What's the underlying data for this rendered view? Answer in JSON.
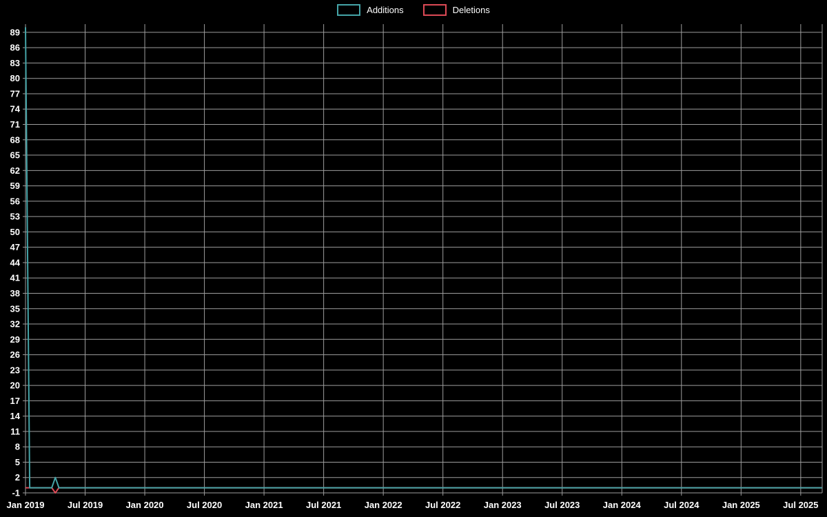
{
  "chart_data": {
    "type": "line",
    "title": "",
    "xlabel": "",
    "ylabel": "",
    "grid": true,
    "legend_position": "top-center",
    "background_color": "#000000",
    "grid_color": "#9e9e9e",
    "text_color": "#ffffff",
    "xlim": [
      2019.0,
      2025.68
    ],
    "ylim": [
      -1,
      90.6
    ],
    "y_ticks": [
      -1,
      2,
      5,
      8,
      11,
      14,
      17,
      20,
      23,
      26,
      29,
      32,
      35,
      38,
      41,
      44,
      47,
      50,
      53,
      56,
      59,
      62,
      65,
      68,
      71,
      74,
      77,
      80,
      83,
      86,
      89
    ],
    "x_ticks": [
      {
        "v": 2019.0,
        "label": "Jan 2019"
      },
      {
        "v": 2019.5,
        "label": "Jul 2019"
      },
      {
        "v": 2020.0,
        "label": "Jan 2020"
      },
      {
        "v": 2020.5,
        "label": "Jul 2020"
      },
      {
        "v": 2021.0,
        "label": "Jan 2021"
      },
      {
        "v": 2021.5,
        "label": "Jul 2021"
      },
      {
        "v": 2022.0,
        "label": "Jan 2022"
      },
      {
        "v": 2022.5,
        "label": "Jul 2022"
      },
      {
        "v": 2023.0,
        "label": "Jan 2023"
      },
      {
        "v": 2023.5,
        "label": "Jul 2023"
      },
      {
        "v": 2024.0,
        "label": "Jan 2024"
      },
      {
        "v": 2024.5,
        "label": "Jul 2024"
      },
      {
        "v": 2025.0,
        "label": "Jan 2025"
      },
      {
        "v": 2025.5,
        "label": "Jul 2025"
      }
    ],
    "series": [
      {
        "name": "Additions",
        "color": "#45a5a8",
        "points": [
          [
            2019.0,
            90
          ],
          [
            2019.035,
            0
          ],
          [
            2019.22,
            0
          ],
          [
            2019.25,
            2
          ],
          [
            2019.28,
            0
          ],
          [
            2025.68,
            0
          ]
        ]
      },
      {
        "name": "Deletions",
        "color": "#dd4a56",
        "points": [
          [
            2019.0,
            0
          ],
          [
            2019.22,
            0
          ],
          [
            2019.25,
            -1
          ],
          [
            2019.28,
            0
          ],
          [
            2025.68,
            0
          ]
        ]
      }
    ]
  }
}
